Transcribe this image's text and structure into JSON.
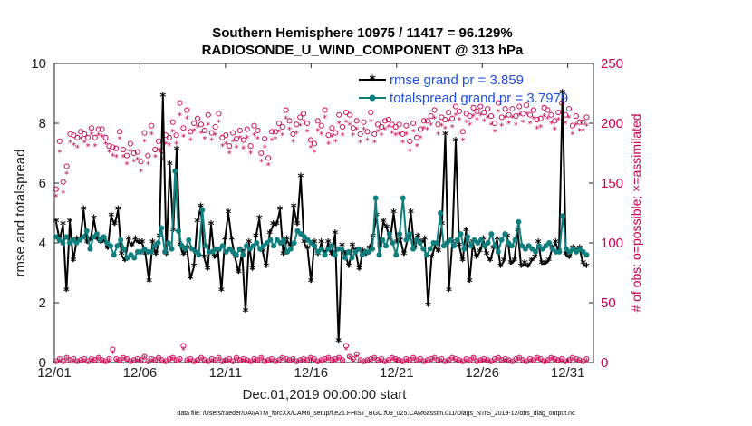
{
  "chart_data": {
    "type": "line",
    "title_line1": "Southern Hemisphere 10975 / 11417 = 96.129%",
    "title_line2": "RADIOSONDE_U_WIND_COMPONENT @ 313 hPa",
    "xlabel": "Dec.01,2019 00:00:00 start",
    "ylabel_left": "rmse and totalspread",
    "ylabel_right": "# of obs: o=possible; ×=assimilated",
    "footnote": "data file: /Users/raeder/DAI/ATM_forcXX/CAM6_setup/f.e21.FHIST_BGC.f09_025.CAM6assim.011/Diags_NTrS_2019-12/obs_diag_output.nc",
    "xlim": [
      0,
      31.5
    ],
    "ylim_left": [
      0,
      10
    ],
    "ylim_right": [
      0,
      250
    ],
    "x_tick_labels": [
      "12/01",
      "12/06",
      "12/11",
      "12/16",
      "12/21",
      "12/26",
      "12/31"
    ],
    "x_tick_values": [
      0,
      5,
      10,
      15,
      20,
      25,
      30
    ],
    "y_left_ticks": [
      "0",
      "2",
      "4",
      "6",
      "8",
      "10"
    ],
    "y_right_ticks": [
      "0",
      "50",
      "100",
      "150",
      "200",
      "250"
    ],
    "colors": {
      "rmse": "#000000",
      "spread": "#0f7e7e",
      "obs": "#c8004e",
      "legend_text": "#1f4fe0"
    },
    "series": [
      {
        "name": "rmse grand pr = 3.859",
        "values": [
          4.7,
          4.1,
          4.6,
          2.4,
          4.7,
          3.4,
          4.1,
          4.1,
          5.1,
          4.0,
          4.1,
          4.8,
          4.1,
          4.0,
          4.1,
          3.8,
          4.9,
          4.6,
          5.1,
          3.6,
          3.4,
          4.1,
          3.9,
          4.1,
          4.0,
          4.0,
          3.6,
          2.7,
          4.0,
          3.6,
          4.2,
          8.9,
          3.6,
          6.6,
          4.4,
          7.1,
          3.9,
          3.6,
          3.8,
          2.8,
          3.2,
          4.7,
          5.2,
          3.5,
          3.1,
          4.6,
          3.5,
          3.7,
          2.4,
          4.1,
          5.0,
          4.1,
          3.5,
          3.0,
          3.7,
          1.7,
          4.0,
          3.1,
          4.2,
          4.8,
          3.7,
          3.2,
          4.3,
          4.6,
          4.6,
          5.1,
          3.6,
          4.1,
          3.9,
          5.2,
          4.6,
          6.2,
          4.0,
          3.8,
          2.7,
          4.0,
          3.6,
          4.0,
          3.6,
          4.0,
          3.6,
          4.3,
          0.7,
          3.9,
          3.6,
          3.2,
          3.9,
          3.7,
          3.1,
          3.7,
          3.6,
          3.8,
          4.2,
          4.9,
          3.9,
          4.7,
          4.5,
          4.1,
          5.0,
          4.0,
          4.1,
          3.6,
          4.1,
          5.0,
          3.8,
          4.2,
          4.0,
          4.1,
          1.9,
          3.5,
          3.9,
          3.7,
          4.6,
          7.6,
          2.4,
          4.0,
          7.4,
          3.9,
          3.4,
          4.4,
          2.7,
          4.0,
          3.5,
          3.7,
          4.1,
          3.6,
          3.4,
          3.8,
          4.1,
          3.2,
          3.4,
          4.2,
          3.3,
          3.4,
          4.4,
          3.2,
          3.3,
          3.2,
          3.4,
          3.5,
          4.0,
          3.3,
          3.3,
          3.4,
          3.8,
          4.0,
          3.7,
          9.0,
          3.6,
          3.5,
          3.8,
          3.7,
          3.8,
          3.3,
          3.2
        ]
      },
      {
        "name": "totalspread grand pr = 3.7979",
        "values": [
          4.2,
          4.1,
          4.0,
          4.2,
          4.0,
          4.1,
          4.0,
          4.1,
          4.2,
          4.4,
          3.8,
          4.2,
          4.3,
          4.1,
          4.2,
          4.0,
          3.9,
          3.6,
          3.9,
          4.1,
          3.8,
          3.5,
          3.6,
          3.5,
          3.7,
          3.7,
          3.8,
          3.7,
          3.7,
          3.9,
          4.0,
          4.5,
          3.7,
          4.0,
          3.8,
          6.4,
          4.4,
          3.9,
          3.8,
          4.1,
          3.8,
          3.7,
          3.6,
          5.1,
          3.9,
          3.7,
          3.7,
          3.8,
          3.8,
          3.9,
          3.7,
          3.8,
          3.7,
          3.6,
          3.8,
          3.6,
          3.9,
          3.8,
          3.9,
          4.0,
          3.8,
          3.9,
          4.0,
          4.1,
          3.9,
          4.1,
          4.0,
          4.1,
          3.7,
          3.8,
          4.0,
          4.4,
          4.3,
          4.2,
          4.1,
          4.0,
          3.9,
          3.7,
          3.8,
          3.6,
          3.8,
          3.9,
          3.6,
          3.8,
          3.8,
          3.5,
          3.7,
          3.5,
          3.7,
          3.8,
          3.6,
          3.7,
          3.7,
          3.8,
          5.5,
          3.6,
          4.1,
          3.9,
          4.3,
          4.0,
          3.6,
          4.3,
          5.5,
          4.1,
          4.3,
          3.8,
          4.1,
          4.0,
          3.8,
          3.6,
          3.8,
          4.0,
          4.0,
          5.0,
          3.9,
          4.0,
          4.1,
          3.9,
          4.1,
          4.3,
          3.8,
          4.2,
          3.9,
          4.1,
          4.0,
          4.1,
          3.9,
          4.0,
          4.3,
          3.9,
          3.7,
          4.1,
          4.3,
          4.0,
          3.9,
          4.1,
          4.7,
          3.9,
          3.8,
          3.9,
          3.8,
          3.7,
          3.9,
          3.8,
          3.9,
          4.0,
          3.8,
          3.7,
          3.7,
          4.9,
          3.8,
          3.7,
          3.8,
          3.7,
          3.8,
          3.7,
          3.6
        ]
      }
    ],
    "obs_possible": [
      145,
      185,
      151,
      164,
      191,
      190,
      188,
      193,
      191,
      188,
      196,
      188,
      195,
      195,
      188,
      181,
      180,
      179,
      193,
      178,
      173,
      183,
      175,
      176,
      168,
      192,
      173,
      198,
      178,
      185,
      177,
      190,
      188,
      201,
      190,
      217,
      196,
      211,
      193,
      200,
      204,
      199,
      194,
      207,
      192,
      197,
      208,
      188,
      190,
      181,
      192,
      187,
      194,
      186,
      195,
      181,
      198,
      194,
      175,
      187,
      171,
      193,
      193,
      200,
      197,
      211,
      202,
      191,
      199,
      205,
      208,
      200,
      186,
      183,
      202,
      198,
      211,
      190,
      196,
      192,
      207,
      197,
      209,
      207,
      196,
      202,
      191,
      201,
      193,
      209,
      191,
      199,
      197,
      202,
      203,
      199,
      197,
      199,
      191,
      198,
      185,
      200,
      188,
      195,
      202,
      202,
      206,
      211,
      199,
      205,
      203,
      209,
      204,
      214,
      210,
      193,
      208,
      206,
      213,
      210,
      214,
      209,
      212,
      206,
      200,
      217,
      205,
      212,
      207,
      212,
      206,
      214,
      208,
      215,
      207,
      211,
      203,
      204,
      213,
      211,
      207,
      202,
      209,
      217,
      207,
      212,
      198,
      206,
      201,
      201,
      205
    ],
    "obs_assimilated": [
      139,
      176,
      142,
      158,
      184,
      182,
      180,
      187,
      184,
      181,
      191,
      181,
      190,
      189,
      183,
      176,
      173,
      172,
      187,
      172,
      166,
      177,
      168,
      170,
      160,
      185,
      166,
      191,
      172,
      178,
      170,
      183,
      182,
      193,
      183,
      207,
      189,
      204,
      186,
      194,
      197,
      192,
      187,
      199,
      186,
      190,
      201,
      181,
      183,
      175,
      185,
      180,
      188,
      179,
      188,
      175,
      190,
      187,
      168,
      180,
      165,
      186,
      187,
      193,
      190,
      204,
      195,
      185,
      192,
      198,
      202,
      193,
      180,
      176,
      194,
      191,
      205,
      183,
      189,
      185,
      200,
      190,
      201,
      199,
      190,
      195,
      184,
      195,
      186,
      202,
      184,
      193,
      190,
      195,
      197,
      192,
      190,
      191,
      184,
      191,
      177,
      193,
      181,
      188,
      196,
      195,
      199,
      204,
      191,
      198,
      196,
      202,
      197,
      207,
      203,
      186,
      201,
      199,
      206,
      203,
      207,
      202,
      205,
      199,
      193,
      210,
      198,
      205,
      200,
      205,
      199,
      207,
      201,
      208,
      200,
      204,
      196,
      197,
      206,
      204,
      200,
      195,
      203,
      210,
      200,
      205,
      191,
      199,
      194,
      194,
      198
    ],
    "obs_possible_low": [
      1,
      3,
      1,
      4,
      2,
      3,
      1,
      2,
      3,
      1,
      3,
      2,
      4,
      2,
      1,
      3,
      11,
      3,
      2,
      4,
      3,
      1,
      2,
      3,
      2,
      5,
      1,
      3,
      2,
      4,
      2,
      1,
      3,
      4,
      2,
      3,
      14,
      2,
      3,
      1,
      2,
      4,
      2,
      1,
      3,
      2,
      4,
      1,
      2,
      3,
      1,
      4,
      2,
      3,
      2,
      1,
      3,
      2,
      4,
      1,
      2,
      3,
      1,
      2,
      4,
      3,
      2,
      3,
      1,
      2,
      3,
      2,
      4,
      3,
      1,
      2,
      3,
      4,
      2,
      3,
      4,
      2,
      14,
      5,
      3,
      7,
      2,
      1,
      2,
      3,
      4,
      2,
      3,
      1,
      2,
      4,
      3,
      2,
      1,
      3,
      2,
      4,
      2,
      3,
      1,
      2,
      3,
      4,
      2,
      3,
      1,
      2,
      4,
      3,
      2,
      1,
      3,
      2,
      4,
      1,
      2,
      3,
      2,
      1,
      3,
      4,
      2,
      3,
      2,
      1,
      3,
      4,
      2,
      1,
      3,
      2,
      4,
      3,
      1,
      2,
      4,
      3,
      2,
      3,
      1,
      2,
      4,
      3,
      2,
      1,
      3
    ],
    "obs_assimilated_low": [
      0,
      2,
      0,
      3,
      1,
      2,
      0,
      1,
      2,
      0,
      2,
      1,
      3,
      1,
      0,
      2,
      8,
      2,
      1,
      3,
      2,
      0,
      1,
      2,
      1,
      4,
      0,
      2,
      1,
      3,
      1,
      0,
      2,
      3,
      1,
      2,
      11,
      1,
      2,
      0,
      1,
      3,
      1,
      0,
      2,
      1,
      3,
      0,
      1,
      2,
      0,
      3,
      1,
      2,
      1,
      0,
      2,
      1,
      3,
      0,
      1,
      2,
      0,
      1,
      3,
      2,
      1,
      2,
      0,
      1,
      2,
      1,
      3,
      2,
      0,
      1,
      2,
      3,
      1,
      2,
      3,
      1,
      11,
      4,
      2,
      5,
      1,
      0,
      1,
      2,
      3,
      1,
      2,
      0,
      1,
      3,
      2,
      1,
      0,
      2,
      1,
      3,
      1,
      2,
      0,
      1,
      2,
      3,
      1,
      2,
      0,
      1,
      3,
      2,
      1,
      0,
      2,
      1,
      3,
      0,
      1,
      2,
      1,
      0,
      2,
      3,
      1,
      2,
      1,
      0,
      2,
      3,
      1,
      0,
      2,
      1,
      3,
      2,
      0,
      1,
      3,
      2,
      1,
      2,
      0,
      1,
      3,
      2,
      1,
      0,
      2
    ]
  }
}
